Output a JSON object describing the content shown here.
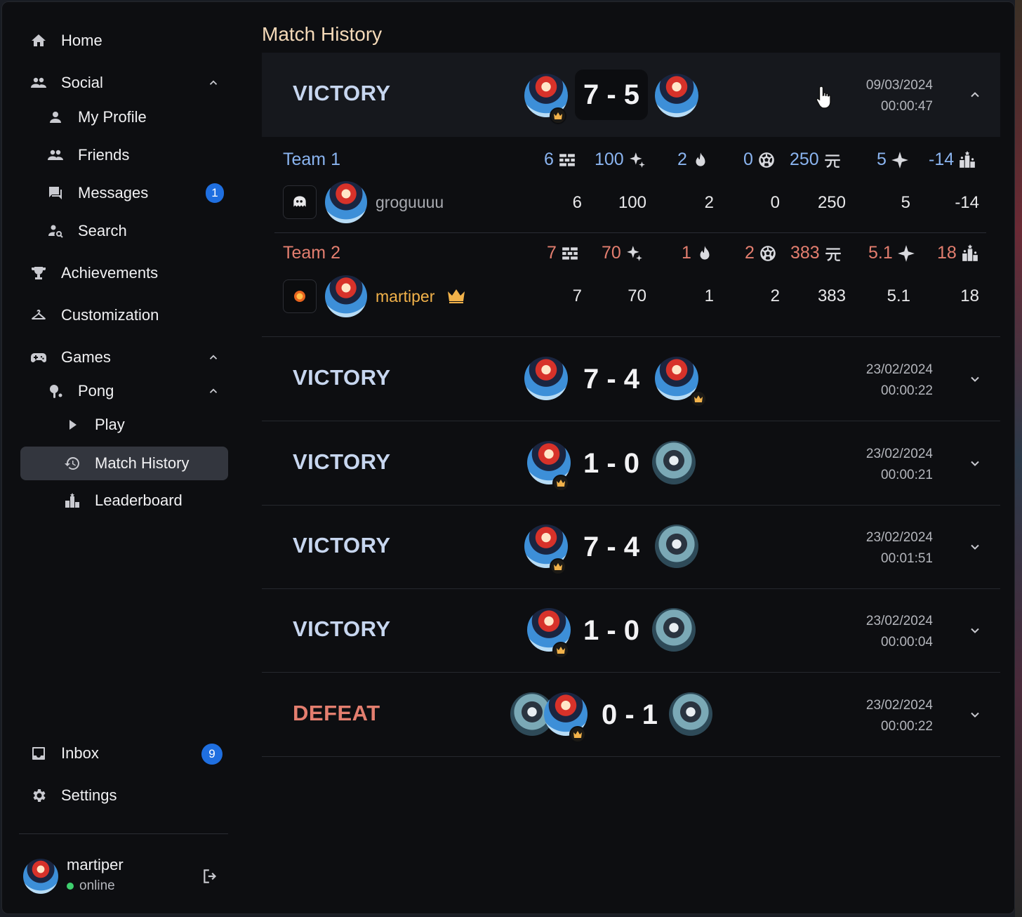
{
  "sidebar": {
    "items": [
      {
        "label": "Home",
        "icon": "home-icon"
      },
      {
        "label": "Social",
        "icon": "group-icon"
      },
      {
        "label": "My Profile",
        "icon": "person-icon"
      },
      {
        "label": "Friends",
        "icon": "group-icon"
      },
      {
        "label": "Messages",
        "icon": "chat-icon",
        "badge": "1"
      },
      {
        "label": "Search",
        "icon": "person-search-icon"
      },
      {
        "label": "Achievements",
        "icon": "trophy-icon"
      },
      {
        "label": "Customization",
        "icon": "hanger-icon"
      },
      {
        "label": "Games",
        "icon": "gamepad-icon"
      },
      {
        "label": "Pong",
        "icon": "paddle-icon"
      },
      {
        "label": "Play",
        "icon": "play-icon"
      },
      {
        "label": "Match History",
        "icon": "history-icon"
      },
      {
        "label": "Leaderboard",
        "icon": "leaderboard-icon"
      },
      {
        "label": "Inbox",
        "icon": "inbox-icon",
        "badge": "9"
      },
      {
        "label": "Settings",
        "icon": "gear-icon"
      }
    ],
    "user": {
      "name": "martiper",
      "status": "online"
    }
  },
  "page_title": "Match History",
  "matches": [
    {
      "result": "VICTORY",
      "score": "7 - 5",
      "date": "09/03/2024",
      "duration": "00:00:47"
    },
    {
      "result": "VICTORY",
      "score": "7 - 4",
      "date": "23/02/2024",
      "duration": "00:00:22"
    },
    {
      "result": "VICTORY",
      "score": "1 - 0",
      "date": "23/02/2024",
      "duration": "00:00:21"
    },
    {
      "result": "VICTORY",
      "score": "7 - 4",
      "date": "23/02/2024",
      "duration": "00:01:51"
    },
    {
      "result": "VICTORY",
      "score": "1 - 0",
      "date": "23/02/2024",
      "duration": "00:00:04"
    },
    {
      "result": "DEFEAT",
      "score": "0 - 1",
      "date": "23/02/2024",
      "duration": "00:00:22"
    }
  ],
  "details": {
    "team1": {
      "name": "Team 1",
      "totals": [
        "6",
        "100",
        "2",
        "0",
        "250",
        "5",
        "-14"
      ],
      "player": {
        "name": "groguuuu",
        "stats": [
          "6",
          "100",
          "2",
          "0",
          "250",
          "5",
          "-14"
        ]
      }
    },
    "team2": {
      "name": "Team 2",
      "totals": [
        "7",
        "70",
        "1",
        "2",
        "383",
        "5.1",
        "18"
      ],
      "player": {
        "name": "martiper",
        "stats": [
          "7",
          "70",
          "1",
          "2",
          "383",
          "5.1",
          "18"
        ]
      }
    },
    "stat_icons": [
      "wall-icon",
      "sparkle-star-icon",
      "flame-icon",
      "ball-icon",
      "yuan-icon",
      "star-icon",
      "podium-icon"
    ]
  },
  "colors": {
    "victory": "#c7d6ef",
    "defeat": "#e37e6f",
    "team1": "#8ab4f0",
    "team2": "#e37e6f",
    "accent_gold": "#f2b24a",
    "badge": "#1f6fe0"
  }
}
